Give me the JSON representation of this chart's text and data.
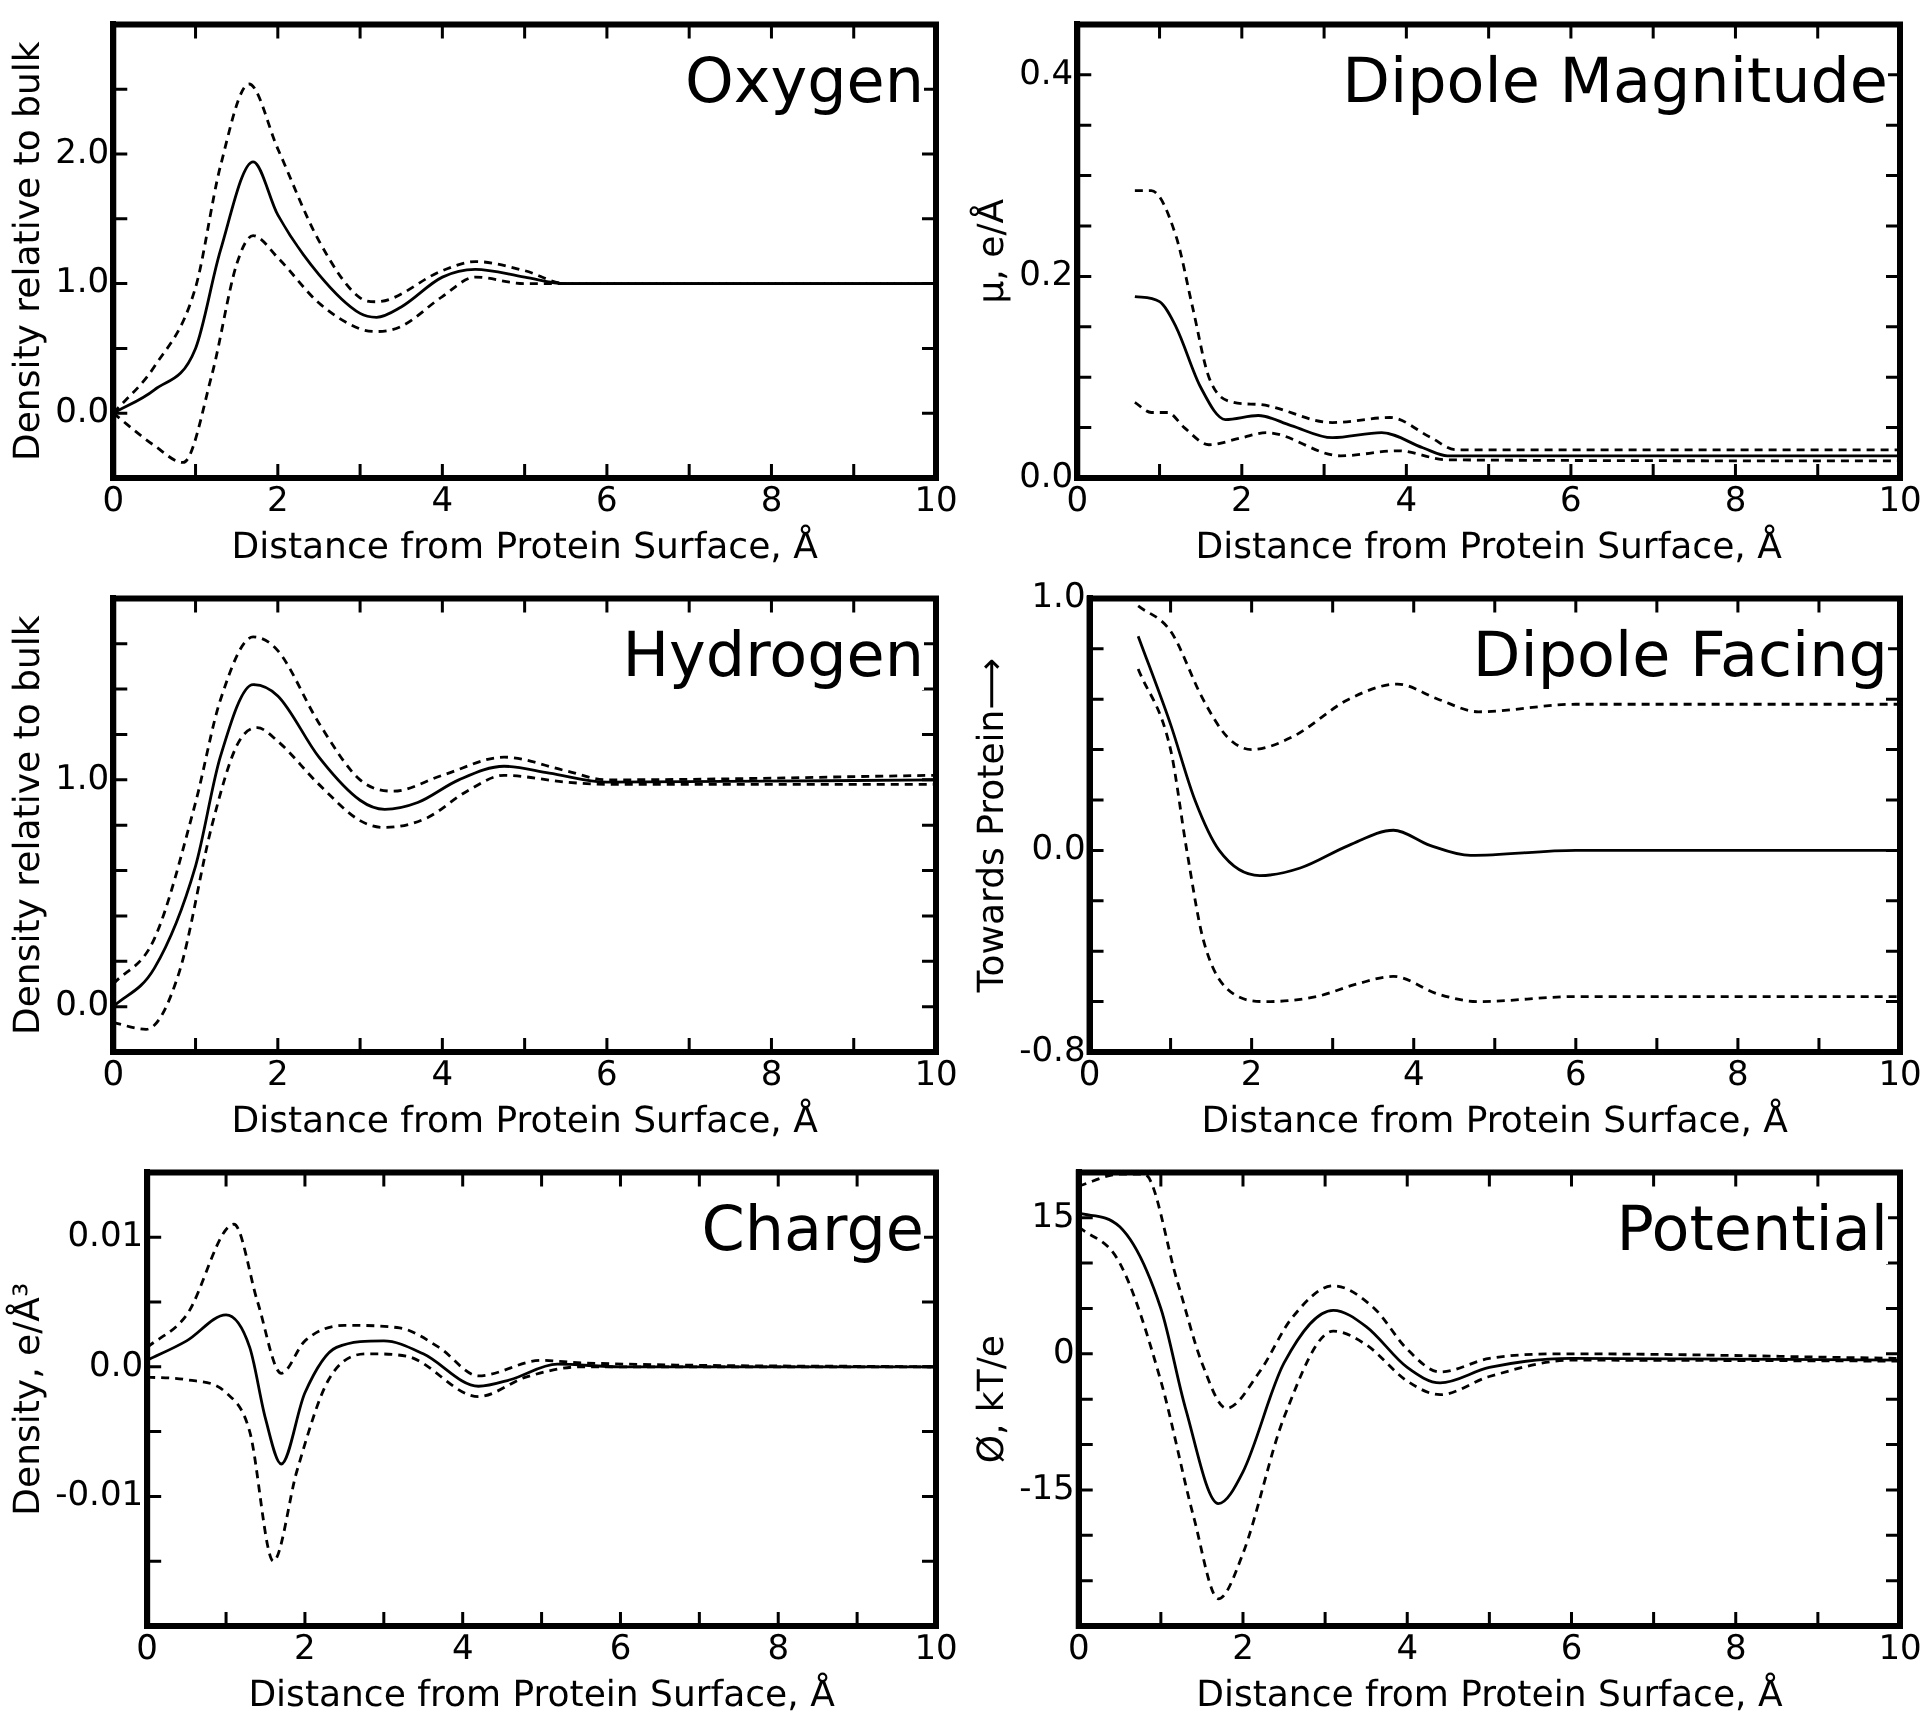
{
  "chart_data": [
    {
      "type": "line",
      "title": "Oxygen",
      "xlabel": "Distance from Protein Surface, Å",
      "ylabel": "Density relative to bulk",
      "xlim": [
        0,
        10
      ],
      "xticks": [
        0,
        {
          "value": 1,
          "label": null
        },
        2,
        {
          "value": 3,
          "label": null
        },
        4,
        {
          "value": 5,
          "label": null
        },
        6,
        {
          "value": 7,
          "label": null
        },
        8,
        {
          "value": 9,
          "label": null
        },
        10
      ],
      "ylim": [
        -0.5,
        3.0
      ],
      "yticks": [
        {
          "value": 0,
          "label": "0.0"
        },
        {
          "value": 0.5,
          "label": null
        },
        {
          "value": 1,
          "label": "1.0"
        },
        {
          "value": 1.5,
          "label": null
        },
        {
          "value": 2,
          "label": "2.0"
        },
        {
          "value": 2.5,
          "label": null
        }
      ],
      "grid": false,
      "legend": false,
      "marker": "none",
      "series": [
        {
          "color": "#000000",
          "line_style": "solid",
          "x": [
            0,
            0.5,
            1,
            1.3,
            1.7,
            2,
            2.5,
            3,
            3.2,
            3.5,
            4,
            4.4,
            5,
            5.5,
            10
          ],
          "values": [
            0,
            0.18,
            0.5,
            1.25,
            1.94,
            1.53,
            1.07,
            0.77,
            0.74,
            0.82,
            1.05,
            1.11,
            1.05,
            1.0,
            1.0
          ]
        },
        {
          "color": "#000000",
          "line_style": "dashed",
          "x": [
            0,
            0.5,
            1,
            1.3,
            1.65,
            2,
            2.5,
            3,
            3.2,
            4,
            4.4,
            5,
            5.5,
            10
          ],
          "values": [
            0,
            0.36,
            0.97,
            1.9,
            2.54,
            2.04,
            1.33,
            0.89,
            0.86,
            1.1,
            1.17,
            1.1,
            1.0,
            1.0
          ]
        },
        {
          "color": "#000000",
          "line_style": "dashed",
          "x": [
            0,
            0.5,
            0.85,
            1.2,
            1.5,
            1.7,
            2,
            2.5,
            3,
            3.2,
            3.5,
            4,
            4.4,
            5,
            5.5,
            10
          ],
          "values": [
            0,
            -0.25,
            -0.38,
            0.3,
            1.15,
            1.37,
            1.2,
            0.85,
            0.65,
            0.63,
            0.67,
            0.9,
            1.05,
            1.0,
            1.0,
            1.0
          ]
        }
      ]
    },
    {
      "type": "line",
      "title": "Dipole Magnitude",
      "xlabel": "Distance from Protein Surface, Å",
      "ylabel": "μ, e/Å",
      "xlim": [
        0,
        10
      ],
      "xticks": [
        0,
        {
          "value": 1,
          "label": null
        },
        2,
        {
          "value": 3,
          "label": null
        },
        4,
        {
          "value": 5,
          "label": null
        },
        6,
        {
          "value": 7,
          "label": null
        },
        8,
        {
          "value": 9,
          "label": null
        },
        10
      ],
      "ylim": [
        0,
        0.45
      ],
      "yticks": [
        {
          "value": 0,
          "label": "0.0"
        },
        {
          "value": 0.05,
          "label": null
        },
        {
          "value": 0.1,
          "label": null
        },
        {
          "value": 0.15,
          "label": null
        },
        {
          "value": 0.2,
          "label": "0.2"
        },
        {
          "value": 0.25,
          "label": null
        },
        {
          "value": 0.3,
          "label": null
        },
        {
          "value": 0.35,
          "label": null
        },
        {
          "value": 0.4,
          "label": "0.4"
        }
      ],
      "grid": false,
      "legend": false,
      "marker": "none",
      "series": [
        {
          "color": "#000000",
          "line_style": "solid",
          "x": [
            0.7,
            1,
            1.2,
            1.5,
            1.8,
            2.2,
            2.6,
            3.1,
            3.7,
            4.2,
            4.5,
            10
          ],
          "values": [
            0.18,
            0.175,
            0.15,
            0.09,
            0.058,
            0.062,
            0.052,
            0.04,
            0.045,
            0.03,
            0.022,
            0.022
          ]
        },
        {
          "color": "#000000",
          "line_style": "dashed",
          "x": [
            0.7,
            0.9,
            1.2,
            1.4,
            1.6,
            1.9,
            2.2,
            3.1,
            3.8,
            4.3,
            4.6,
            10
          ],
          "values": [
            0.285,
            0.285,
            0.24,
            0.17,
            0.1,
            0.075,
            0.073,
            0.055,
            0.06,
            0.04,
            0.028,
            0.028
          ]
        },
        {
          "color": "#000000",
          "line_style": "dashed",
          "x": [
            0.7,
            0.9,
            1.1,
            1.3,
            1.6,
            2,
            2.3,
            3.2,
            3.9,
            4.5,
            10
          ],
          "values": [
            0.075,
            0.065,
            0.065,
            0.05,
            0.033,
            0.04,
            0.045,
            0.022,
            0.027,
            0.018,
            0.017
          ]
        }
      ]
    },
    {
      "type": "line",
      "title": "Hydrogen",
      "xlabel": "Distance from Protein Surface, Å",
      "ylabel": "Density relative to bulk",
      "xlim": [
        0,
        10
      ],
      "xticks": [
        0,
        {
          "value": 1,
          "label": null
        },
        2,
        {
          "value": 3,
          "label": null
        },
        4,
        {
          "value": 5,
          "label": null
        },
        6,
        {
          "value": 7,
          "label": null
        },
        8,
        {
          "value": 9,
          "label": null
        },
        10
      ],
      "ylim": [
        -0.2,
        1.8
      ],
      "yticks": [
        {
          "value": 0,
          "label": "0.0"
        },
        {
          "value": 0.2,
          "label": null
        },
        {
          "value": 0.4,
          "label": null
        },
        {
          "value": 0.6,
          "label": null
        },
        {
          "value": 0.8,
          "label": null
        },
        {
          "value": 1,
          "label": "1.0"
        },
        {
          "value": 1.2,
          "label": null
        },
        {
          "value": 1.4,
          "label": null
        },
        {
          "value": 1.6,
          "label": null
        }
      ],
      "grid": false,
      "legend": false,
      "marker": "none",
      "series": [
        {
          "color": "#000000",
          "line_style": "solid",
          "x": [
            0,
            0.5,
            1,
            1.3,
            1.7,
            2,
            2.5,
            3,
            3.3,
            3.7,
            4.2,
            4.75,
            5.3,
            6,
            10
          ],
          "values": [
            0,
            0.17,
            0.62,
            1.1,
            1.42,
            1.37,
            1.1,
            0.91,
            0.87,
            0.9,
            1.0,
            1.06,
            1.03,
            0.99,
            1.0
          ]
        },
        {
          "color": "#000000",
          "line_style": "dashed",
          "x": [
            0,
            0.5,
            1,
            1.3,
            1.7,
            2,
            2.5,
            3,
            3.4,
            4,
            4.75,
            5.5,
            6,
            10
          ],
          "values": [
            0.1,
            0.3,
            0.9,
            1.35,
            1.63,
            1.57,
            1.25,
            1.0,
            0.95,
            1.02,
            1.1,
            1.04,
            1.0,
            1.02
          ]
        },
        {
          "color": "#000000",
          "line_style": "dashed",
          "x": [
            0,
            0.4,
            0.8,
            1.2,
            1.5,
            1.75,
            2,
            2.5,
            3,
            3.3,
            3.8,
            4.3,
            4.75,
            5.5,
            6,
            10
          ],
          "values": [
            -0.07,
            -0.1,
            0.15,
            0.8,
            1.15,
            1.23,
            1.17,
            0.98,
            0.82,
            0.79,
            0.83,
            0.95,
            1.02,
            0.99,
            0.98,
            0.98
          ]
        }
      ]
    },
    {
      "type": "line",
      "title": "Dipole Facing",
      "xlabel": "Distance from Protein Surface, Å",
      "ylabel": "Towards Protein⟶",
      "xlim": [
        0,
        10
      ],
      "xticks": [
        0,
        {
          "value": 1,
          "label": null
        },
        2,
        {
          "value": 3,
          "label": null
        },
        4,
        {
          "value": 5,
          "label": null
        },
        6,
        {
          "value": 7,
          "label": null
        },
        8,
        {
          "value": 9,
          "label": null
        },
        10
      ],
      "ylim": [
        -0.8,
        1.0
      ],
      "yticks": [
        -0.8,
        {
          "value": -0.6,
          "label": null
        },
        {
          "value": -0.4,
          "label": null
        },
        {
          "value": -0.2,
          "label": null
        },
        {
          "value": 0,
          "label": "0.0"
        },
        {
          "value": 0.2,
          "label": null
        },
        {
          "value": 0.4,
          "label": null
        },
        {
          "value": 0.6,
          "label": null
        },
        {
          "value": 0.8,
          "label": null
        },
        {
          "value": 1,
          "label": "1.0"
        }
      ],
      "grid": false,
      "legend": false,
      "marker": "none",
      "series": [
        {
          "color": "#000000",
          "line_style": "solid",
          "x": [
            0.6,
            1,
            1.3,
            1.6,
            2.1,
            2.6,
            3.2,
            3.75,
            4.2,
            4.7,
            6,
            10
          ],
          "values": [
            0.85,
            0.5,
            0.2,
            0.0,
            -0.1,
            -0.07,
            0.02,
            0.08,
            0.02,
            -0.02,
            0.0,
            0.0
          ]
        },
        {
          "color": "#000000",
          "line_style": "dashed",
          "x": [
            0.6,
            1,
            1.4,
            1.7,
            2,
            2.5,
            3.2,
            3.8,
            4.3,
            4.8,
            6,
            10
          ],
          "values": [
            0.97,
            0.87,
            0.6,
            0.45,
            0.4,
            0.45,
            0.6,
            0.66,
            0.6,
            0.55,
            0.58,
            0.58
          ]
        },
        {
          "color": "#000000",
          "line_style": "dashed",
          "x": [
            0.6,
            1,
            1.2,
            1.4,
            1.7,
            2.2,
            2.8,
            3.3,
            3.75,
            4.3,
            4.8,
            6,
            10
          ],
          "values": [
            0.72,
            0.4,
            0.0,
            -0.35,
            -0.55,
            -0.6,
            -0.58,
            -0.53,
            -0.5,
            -0.57,
            -0.6,
            -0.58,
            -0.58
          ]
        }
      ]
    },
    {
      "type": "line",
      "title": "Charge",
      "xlabel": "Distance from Protein Surface, Å",
      "ylabel": "Density, e/Å³",
      "xlim": [
        0,
        10
      ],
      "xticks": [
        0,
        {
          "value": 1,
          "label": null
        },
        2,
        {
          "value": 3,
          "label": null
        },
        4,
        {
          "value": 5,
          "label": null
        },
        6,
        {
          "value": 7,
          "label": null
        },
        8,
        {
          "value": 9,
          "label": null
        },
        10
      ],
      "ylim": [
        -0.02,
        0.015
      ],
      "yticks": [
        {
          "value": -0.015,
          "label": null
        },
        -0.01,
        {
          "value": -0.005,
          "label": null
        },
        {
          "value": 0,
          "label": "0.0"
        },
        {
          "value": 0.005,
          "label": null
        },
        0.01
      ],
      "grid": false,
      "legend": false,
      "marker": "none",
      "series": [
        {
          "color": "#000000",
          "line_style": "solid",
          "x": [
            0,
            0.5,
            1,
            1.3,
            1.5,
            1.7,
            2,
            2.4,
            3,
            3.5,
            4.2,
            4.6,
            5.2,
            6,
            10
          ],
          "values": [
            0.0005,
            0.002,
            0.004,
            0.0015,
            -0.004,
            -0.0075,
            -0.002,
            0.0015,
            0.002,
            0.001,
            -0.0015,
            -0.001,
            0.0002,
            0,
            0
          ]
        },
        {
          "color": "#000000",
          "line_style": "dashed",
          "x": [
            0,
            0.5,
            1.1,
            1.4,
            1.7,
            2,
            2.5,
            3.2,
            3.7,
            4.2,
            5,
            5.5,
            10
          ],
          "values": [
            0.0015,
            0.004,
            0.011,
            0.005,
            -0.0005,
            0.002,
            0.0032,
            0.003,
            0.0015,
            -0.0007,
            0.0005,
            0.0003,
            0
          ]
        },
        {
          "color": "#000000",
          "line_style": "dashed",
          "x": [
            0,
            0.5,
            1,
            1.3,
            1.6,
            1.9,
            2.3,
            2.8,
            3.3,
            4.2,
            4.8,
            5.5,
            10
          ],
          "values": [
            -0.0008,
            -0.001,
            -0.002,
            -0.005,
            -0.015,
            -0.008,
            -0.001,
            0.001,
            0.0008,
            -0.0023,
            -0.0008,
            0,
            0
          ]
        }
      ]
    },
    {
      "type": "line",
      "title": "Potential",
      "xlabel": "Distance from Protein Surface, Å",
      "ylabel": "Ø, kT/e",
      "xlim": [
        0,
        10
      ],
      "xticks": [
        0,
        {
          "value": 1,
          "label": null
        },
        2,
        {
          "value": 3,
          "label": null
        },
        4,
        {
          "value": 5,
          "label": null
        },
        6,
        {
          "value": 7,
          "label": null
        },
        8,
        {
          "value": 9,
          "label": null
        },
        10
      ],
      "ylim": [
        -30,
        20
      ],
      "yticks": [
        {
          "value": -25,
          "label": null
        },
        {
          "value": -20,
          "label": null
        },
        -15,
        {
          "value": -10,
          "label": null
        },
        {
          "value": -5,
          "label": null
        },
        0,
        {
          "value": 5,
          "label": null
        },
        {
          "value": 10,
          "label": null
        },
        15
      ],
      "grid": false,
      "legend": false,
      "marker": "none",
      "series": [
        {
          "color": "#000000",
          "line_style": "solid",
          "x": [
            0,
            0.5,
            1,
            1.3,
            1.7,
            2,
            2.5,
            3.1,
            3.5,
            4,
            4.4,
            5,
            6,
            10
          ],
          "values": [
            15.5,
            14,
            5,
            -6,
            -16.5,
            -13,
            -1,
            4.8,
            3,
            -1.5,
            -3.2,
            -1.5,
            -0.5,
            -0.7
          ]
        },
        {
          "color": "#000000",
          "line_style": "dashed",
          "x": [
            0,
            0.5,
            0.8,
            1.2,
            1.5,
            1.8,
            2.2,
            2.6,
            3.1,
            3.6,
            4,
            4.4,
            5,
            6,
            10
          ],
          "values": [
            18.5,
            19.8,
            19.8,
            8,
            -1,
            -6,
            -2,
            4,
            7.5,
            5,
            0.5,
            -2,
            -0.5,
            0,
            -0.5
          ]
        },
        {
          "color": "#000000",
          "line_style": "dashed",
          "x": [
            0,
            0.5,
            1,
            1.4,
            1.7,
            2,
            2.5,
            3.1,
            3.5,
            4,
            4.4,
            5,
            6,
            10
          ],
          "values": [
            14,
            10,
            -3,
            -18,
            -27,
            -22,
            -7,
            2.5,
            1,
            -3,
            -4.5,
            -2.5,
            -0.7,
            -0.8
          ]
        }
      ]
    }
  ]
}
